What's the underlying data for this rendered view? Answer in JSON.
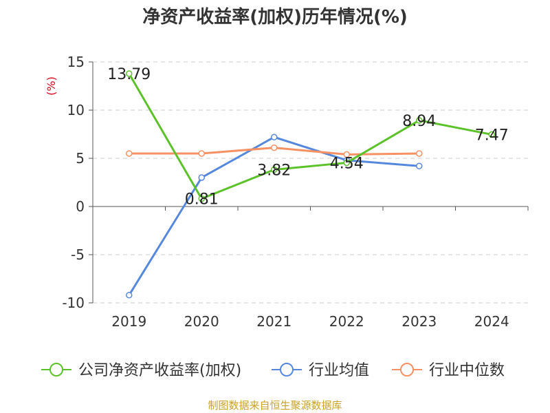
{
  "chart_data": {
    "type": "line",
    "title": "净资产收益率(加权)历年情况(%)",
    "ylabel": "(%)",
    "categories": [
      "2019",
      "2020",
      "2021",
      "2022",
      "2023",
      "2024"
    ],
    "ylim": [
      -10,
      15
    ],
    "yticks": [
      -10,
      -5,
      0,
      5,
      10,
      15
    ],
    "grid": true,
    "legend": "bottom",
    "series": [
      {
        "name": "公司净资产收益率(加权)",
        "color": "#5cc22a",
        "values": [
          13.79,
          0.81,
          3.82,
          4.54,
          8.94,
          7.47
        ],
        "labels": [
          "13.79",
          "0.81",
          "3.82",
          "4.54",
          "8.94",
          "7.47"
        ]
      },
      {
        "name": "行业均值",
        "color": "#5588dd",
        "values": [
          -9.2,
          3.0,
          7.2,
          4.8,
          4.2,
          null
        ]
      },
      {
        "name": "行业中位数",
        "color": "#f59163",
        "values": [
          5.5,
          5.5,
          6.1,
          5.4,
          5.5,
          null
        ]
      }
    ]
  },
  "footer": {
    "source": "制图数据来自恒生聚源数据库"
  }
}
